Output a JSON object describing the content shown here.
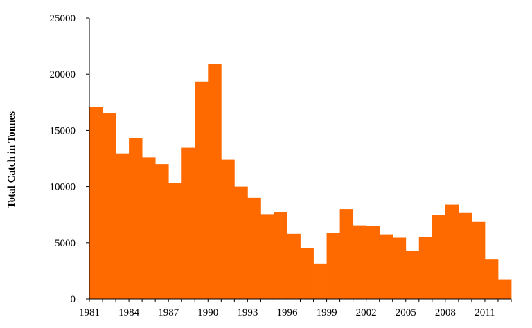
{
  "chart_data": {
    "type": "bar",
    "title": "",
    "xlabel": "",
    "ylabel": "Total Catch in Tonnes",
    "bar_color": "#FF6A00",
    "ylim": [
      0,
      25000
    ],
    "y_ticks": [
      0,
      5000,
      10000,
      15000,
      20000,
      25000
    ],
    "x_tick_labels": [
      "1981",
      "1984",
      "1987",
      "1990",
      "1993",
      "1996",
      "1999",
      "2002",
      "2005",
      "2008",
      "2011"
    ],
    "x": [
      1981,
      1982,
      1983,
      1984,
      1985,
      1986,
      1987,
      1988,
      1989,
      1990,
      1991,
      1992,
      1993,
      1994,
      1995,
      1996,
      1997,
      1998,
      1999,
      2000,
      2001,
      2002,
      2003,
      2004,
      2005,
      2006,
      2007,
      2008,
      2009,
      2010,
      2011,
      2012
    ],
    "values": [
      17100,
      16500,
      12950,
      14300,
      12600,
      12000,
      10300,
      13450,
      19350,
      20900,
      12400,
      10000,
      9000,
      7550,
      7750,
      5800,
      4550,
      3150,
      5900,
      8000,
      6550,
      6500,
      5750,
      5450,
      4250,
      5500,
      7450,
      8400,
      7650,
      6850,
      3500,
      1750
    ],
    "grid": false,
    "legend": "none"
  }
}
